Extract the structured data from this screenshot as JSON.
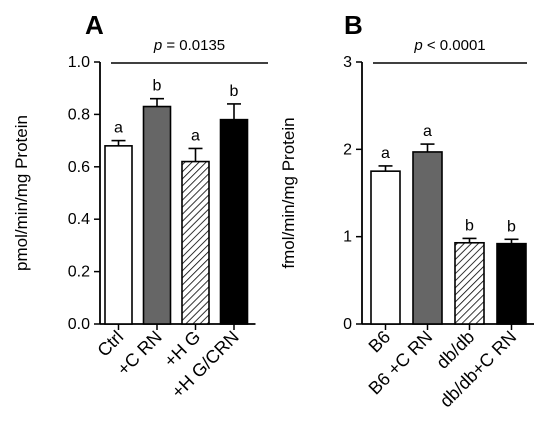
{
  "colors": {
    "white_bar": "#ffffff",
    "gray_bar": "#666666",
    "black_bar": "#000000",
    "axis": "#000000"
  },
  "chart_data": [
    {
      "type": "bar",
      "panel": "A",
      "ylabel": "pmol/min/mg Protein",
      "xlabel": "",
      "ylim": [
        0,
        1.0
      ],
      "yticks": [
        0.0,
        0.2,
        0.4,
        0.6,
        0.8,
        1.0
      ],
      "ytick_labels": [
        "0.0",
        "0.2",
        "0.4",
        "0.6",
        "0.8",
        "1.0"
      ],
      "categories": [
        "Ctrl",
        "+C RN",
        "+H G",
        "+H G/CRN"
      ],
      "values": [
        0.68,
        0.83,
        0.62,
        0.78
      ],
      "errors": [
        0.02,
        0.03,
        0.05,
        0.06
      ],
      "fills": [
        "white",
        "gray",
        "hatched",
        "black"
      ],
      "significance_letters": [
        "a",
        "b",
        "a",
        "b"
      ],
      "p_label": "p",
      "p_text": " = 0.0135",
      "grid": false
    },
    {
      "type": "bar",
      "panel": "B",
      "ylabel": "fmol/min/mg  Protein",
      "xlabel": "",
      "ylim": [
        0,
        3
      ],
      "yticks": [
        0,
        1,
        2,
        3
      ],
      "ytick_labels": [
        "0",
        "1",
        "2",
        "3"
      ],
      "categories": [
        "B6",
        "B6 +C RN",
        "db/db",
        "db/db+C RN"
      ],
      "values": [
        1.75,
        1.97,
        0.93,
        0.92
      ],
      "errors": [
        0.06,
        0.09,
        0.05,
        0.05
      ],
      "fills": [
        "white",
        "gray",
        "hatched",
        "black"
      ],
      "significance_letters": [
        "a",
        "a",
        "b",
        "b"
      ],
      "p_label": "p",
      "p_text": " < 0.0001",
      "grid": false
    }
  ]
}
